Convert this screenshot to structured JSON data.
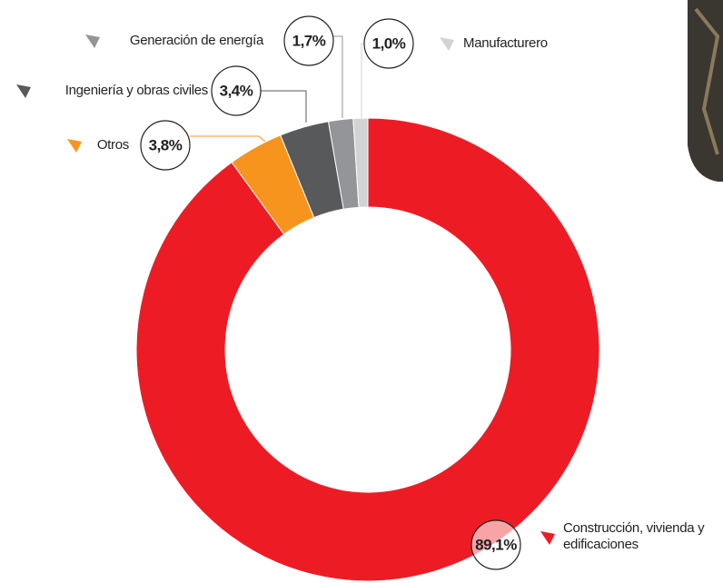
{
  "chart_data": {
    "type": "donut",
    "categories": [
      "Construcción, vivienda y edificaciones",
      "Otros",
      "Ingeniería y obras civiles",
      "Generación de energía",
      "Manufacturero"
    ],
    "values": [
      89.1,
      3.8,
      3.4,
      1.7,
      1.0
    ],
    "value_labels": [
      "89,1%",
      "3,8%",
      "3,4%",
      "1,7%",
      "1,0%"
    ],
    "colors": [
      "#ed1c24",
      "#f7941d",
      "#58595b",
      "#939598",
      "#d1d3d4"
    ]
  }
}
